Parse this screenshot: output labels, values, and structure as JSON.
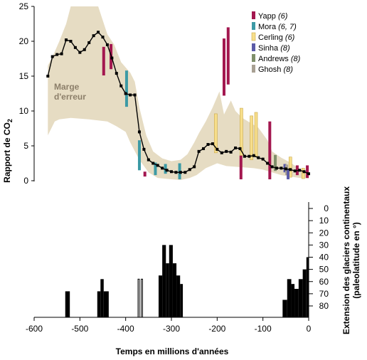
{
  "chart_data": {
    "type": "line",
    "xlabel": "Temps en millions d'années",
    "ylabel_left": "Rapport de CO",
    "ylabel_left_sub": "2",
    "ylabel_right_line1": "Extension des glaciers continentaux",
    "ylabel_right_line2": "(paleolatitude en °)",
    "xlim": [
      -600,
      0
    ],
    "ylim_co2": [
      0,
      25
    ],
    "x_ticks": [
      -600,
      -500,
      -400,
      -300,
      -200,
      -100,
      0
    ],
    "x_tick_labels": [
      "-600",
      "-500",
      "-400",
      "-300",
      "-200",
      "-100",
      "0"
    ],
    "y_left_ticks": [
      0,
      5,
      10,
      15,
      20,
      25
    ],
    "y_left_tick_labels": [
      "0",
      "5",
      "10",
      "15",
      "20",
      "25"
    ],
    "y_right_ticks": [
      0,
      10,
      20,
      30,
      40,
      50,
      60,
      70,
      80
    ],
    "y_right_tick_labels": [
      "0",
      "10",
      "20",
      "30",
      "40",
      "50",
      "60",
      "70",
      "80"
    ],
    "colors": {
      "band": "#e6dcc3",
      "line": "#000000",
      "glacier": "#000000"
    },
    "error_band": {
      "label_line1": "Marge",
      "label_line2": "d'erreur",
      "upper": [
        [
          -570,
          16.5
        ],
        [
          -555,
          18.5
        ],
        [
          -545,
          20
        ],
        [
          -530,
          22.5
        ],
        [
          -520,
          25
        ],
        [
          -460,
          25
        ],
        [
          -450,
          23
        ],
        [
          -440,
          21
        ],
        [
          -425,
          19.5
        ],
        [
          -410,
          17
        ],
        [
          -390,
          15.5
        ],
        [
          -380,
          14.2
        ],
        [
          -370,
          10.5
        ],
        [
          -355,
          6.5
        ],
        [
          -340,
          4.2
        ],
        [
          -320,
          3.2
        ],
        [
          -300,
          2.8
        ],
        [
          -280,
          3
        ],
        [
          -265,
          3.8
        ],
        [
          -250,
          5.5
        ],
        [
          -240,
          6.8
        ],
        [
          -225,
          8.5
        ],
        [
          -210,
          10.5
        ],
        [
          -195,
          12.8
        ],
        [
          -185,
          9.5
        ],
        [
          -170,
          11.5
        ],
        [
          -160,
          10
        ],
        [
          -145,
          9
        ],
        [
          -130,
          8.4
        ],
        [
          -110,
          7.6
        ],
        [
          -90,
          5.8
        ],
        [
          -80,
          4.2
        ],
        [
          -60,
          3.3
        ],
        [
          -40,
          2.6
        ],
        [
          -20,
          1.7
        ],
        [
          0,
          1.2
        ]
      ],
      "lower": [
        [
          -570,
          6.5
        ],
        [
          -555,
          8.5
        ],
        [
          -545,
          8.8
        ],
        [
          -520,
          9
        ],
        [
          -480,
          8.8
        ],
        [
          -440,
          8.5
        ],
        [
          -420,
          7.8
        ],
        [
          -400,
          7
        ],
        [
          -390,
          5.5
        ],
        [
          -370,
          3
        ],
        [
          -350,
          1.2
        ],
        [
          -330,
          0.4
        ],
        [
          -300,
          0.2
        ],
        [
          -280,
          0.1
        ],
        [
          -260,
          0.4
        ],
        [
          -245,
          0.8
        ],
        [
          -225,
          1.8
        ],
        [
          -200,
          2.5
        ],
        [
          -180,
          2.1
        ],
        [
          -160,
          2
        ],
        [
          -140,
          1.9
        ],
        [
          -120,
          1.8
        ],
        [
          -100,
          1.6
        ],
        [
          -80,
          1.2
        ],
        [
          -60,
          0.8
        ],
        [
          -40,
          0.6
        ],
        [
          -20,
          0.4
        ],
        [
          0,
          0.3
        ]
      ]
    },
    "series": [
      {
        "points": [
          [
            -570,
            15
          ],
          [
            -560,
            17.8
          ],
          [
            -550,
            18.1
          ],
          [
            -540,
            18.2
          ],
          [
            -530,
            20.2
          ],
          [
            -520,
            20
          ],
          [
            -510,
            19.1
          ],
          [
            -500,
            18.4
          ],
          [
            -490,
            18.8
          ],
          [
            -480,
            19.8
          ],
          [
            -470,
            20.8
          ],
          [
            -460,
            21.3
          ],
          [
            -450,
            20.6
          ],
          [
            -440,
            19.5
          ],
          [
            -430,
            17.6
          ],
          [
            -420,
            15.4
          ],
          [
            -410,
            13.6
          ],
          [
            -400,
            12.5
          ],
          [
            -390,
            12.3
          ],
          [
            -380,
            12.3
          ],
          [
            -370,
            7
          ],
          [
            -360,
            4.5
          ],
          [
            -350,
            3
          ],
          [
            -340,
            2.5
          ],
          [
            -330,
            2.2
          ],
          [
            -320,
            1.8
          ],
          [
            -310,
            1.5
          ],
          [
            -300,
            1.3
          ],
          [
            -290,
            1.2
          ],
          [
            -280,
            1.2
          ],
          [
            -270,
            1.2
          ],
          [
            -260,
            1.6
          ],
          [
            -250,
            2
          ],
          [
            -240,
            4.2
          ],
          [
            -230,
            4.6
          ],
          [
            -220,
            5.2
          ],
          [
            -210,
            5.3
          ],
          [
            -200,
            4.5
          ],
          [
            -190,
            4
          ],
          [
            -180,
            4.2
          ],
          [
            -170,
            4.1
          ],
          [
            -160,
            4.7
          ],
          [
            -150,
            4.6
          ],
          [
            -140,
            3.5
          ],
          [
            -130,
            3.5
          ],
          [
            -120,
            3.6
          ],
          [
            -110,
            3.3
          ],
          [
            -100,
            3.1
          ],
          [
            -90,
            2.5
          ],
          [
            -80,
            2
          ],
          [
            -70,
            1.8
          ],
          [
            -60,
            1.8
          ],
          [
            -50,
            1.7
          ],
          [
            -40,
            1.6
          ],
          [
            -30,
            1.4
          ],
          [
            -20,
            1.5
          ],
          [
            -10,
            1.3
          ],
          [
            0,
            1
          ]
        ]
      }
    ],
    "proxies": [
      {
        "name": "Yapp",
        "ref": "(6)",
        "color": "#a3174f"
      },
      {
        "name": "Mora",
        "ref": "(6, 7)",
        "color": "#3c9aa5"
      },
      {
        "name": "Cerling",
        "ref": "(6)",
        "color": "#f7de8a"
      },
      {
        "name": "Sinha",
        "ref": "(8)",
        "color": "#5b5ba7"
      },
      {
        "name": "Andrews",
        "ref": "(8)",
        "color": "#7f8f6a"
      },
      {
        "name": "Ghosh",
        "ref": "(8)",
        "color": "#a8a093"
      }
    ],
    "proxy_bars": [
      {
        "proxy": 0,
        "x": -448,
        "y0": 15.1,
        "y1": 19.2
      },
      {
        "proxy": 0,
        "x": -432,
        "y0": 16,
        "y1": 19.6
      },
      {
        "proxy": 1,
        "x": -398,
        "y0": 10.6,
        "y1": 15.8
      },
      {
        "proxy": 1,
        "x": -370,
        "y0": 1.5,
        "y1": 5.8
      },
      {
        "proxy": 0,
        "x": -358,
        "y0": 0.6,
        "y1": 1.3
      },
      {
        "proxy": 1,
        "x": -335,
        "y0": 0.8,
        "y1": 2.6
      },
      {
        "proxy": 1,
        "x": -313,
        "y0": 1,
        "y1": 2.4
      },
      {
        "proxy": 1,
        "x": -282,
        "y0": 0.2,
        "y1": 2.5
      },
      {
        "proxy": 0,
        "x": -185,
        "y0": 12.2,
        "y1": 20.4
      },
      {
        "proxy": 0,
        "x": -176,
        "y0": 13.8,
        "y1": 22
      },
      {
        "proxy": 2,
        "x": -203,
        "y0": 4,
        "y1": 9.6
      },
      {
        "proxy": 2,
        "x": -147,
        "y0": 3.6,
        "y1": 10.4
      },
      {
        "proxy": 0,
        "x": -148,
        "y0": 0.2,
        "y1": 3.6
      },
      {
        "proxy": 2,
        "x": -125,
        "y0": 3,
        "y1": 9.3
      },
      {
        "proxy": 2,
        "x": -115,
        "y0": 3.4,
        "y1": 9.8
      },
      {
        "proxy": 0,
        "x": -85,
        "y0": 0.2,
        "y1": 8.5
      },
      {
        "proxy": 2,
        "x": -40,
        "y0": 0.5,
        "y1": 3.4
      },
      {
        "proxy": 4,
        "x": -73,
        "y0": 1.4,
        "y1": 3.7
      },
      {
        "proxy": 3,
        "x": -52,
        "y0": 1.2,
        "y1": 2.4
      },
      {
        "proxy": 5,
        "x": -48,
        "y0": 0.8,
        "y1": 2.3
      },
      {
        "proxy": 3,
        "x": -45,
        "y0": 0.2,
        "y1": 1.6
      },
      {
        "proxy": 0,
        "x": -25,
        "y0": 0.8,
        "y1": 2.2
      },
      {
        "proxy": 2,
        "x": -12,
        "y0": 0.3,
        "y1": 1.8
      },
      {
        "proxy": 0,
        "x": -3,
        "y0": 0.4,
        "y1": 2.2
      }
    ],
    "glaciers": [
      {
        "x0": -532,
        "x1": -522,
        "lat": 68,
        "outline": false
      },
      {
        "x0": -462,
        "x1": -455,
        "lat": 68,
        "outline": false
      },
      {
        "x0": -455,
        "x1": -448,
        "lat": 58,
        "outline": false
      },
      {
        "x0": -448,
        "x1": -437,
        "lat": 68,
        "outline": false
      },
      {
        "x0": -373,
        "x1": -370,
        "lat": 58,
        "outline": true
      },
      {
        "x0": -366,
        "x1": -363,
        "lat": 58,
        "outline": true
      },
      {
        "x0": -328,
        "x1": -320,
        "lat": 55,
        "outline": false
      },
      {
        "x0": -320,
        "x1": -312,
        "lat": 30,
        "outline": false
      },
      {
        "x0": -312,
        "x1": -305,
        "lat": 45,
        "outline": false
      },
      {
        "x0": -305,
        "x1": -297,
        "lat": 30,
        "outline": false
      },
      {
        "x0": -297,
        "x1": -289,
        "lat": 45,
        "outline": false
      },
      {
        "x0": -289,
        "x1": -281,
        "lat": 55,
        "outline": false
      },
      {
        "x0": -281,
        "x1": -275,
        "lat": 62,
        "outline": false
      },
      {
        "x0": -57,
        "x1": -47,
        "lat": 75,
        "outline": false
      },
      {
        "x0": -47,
        "x1": -38,
        "lat": 58,
        "outline": false
      },
      {
        "x0": -38,
        "x1": -31,
        "lat": 62,
        "outline": false
      },
      {
        "x0": -31,
        "x1": -22,
        "lat": 66,
        "outline": false
      },
      {
        "x0": -22,
        "x1": -13,
        "lat": 58,
        "outline": false
      },
      {
        "x0": -13,
        "x1": -5,
        "lat": 50,
        "outline": false
      },
      {
        "x0": -5,
        "x1": 0,
        "lat": 40,
        "outline": false
      }
    ]
  }
}
